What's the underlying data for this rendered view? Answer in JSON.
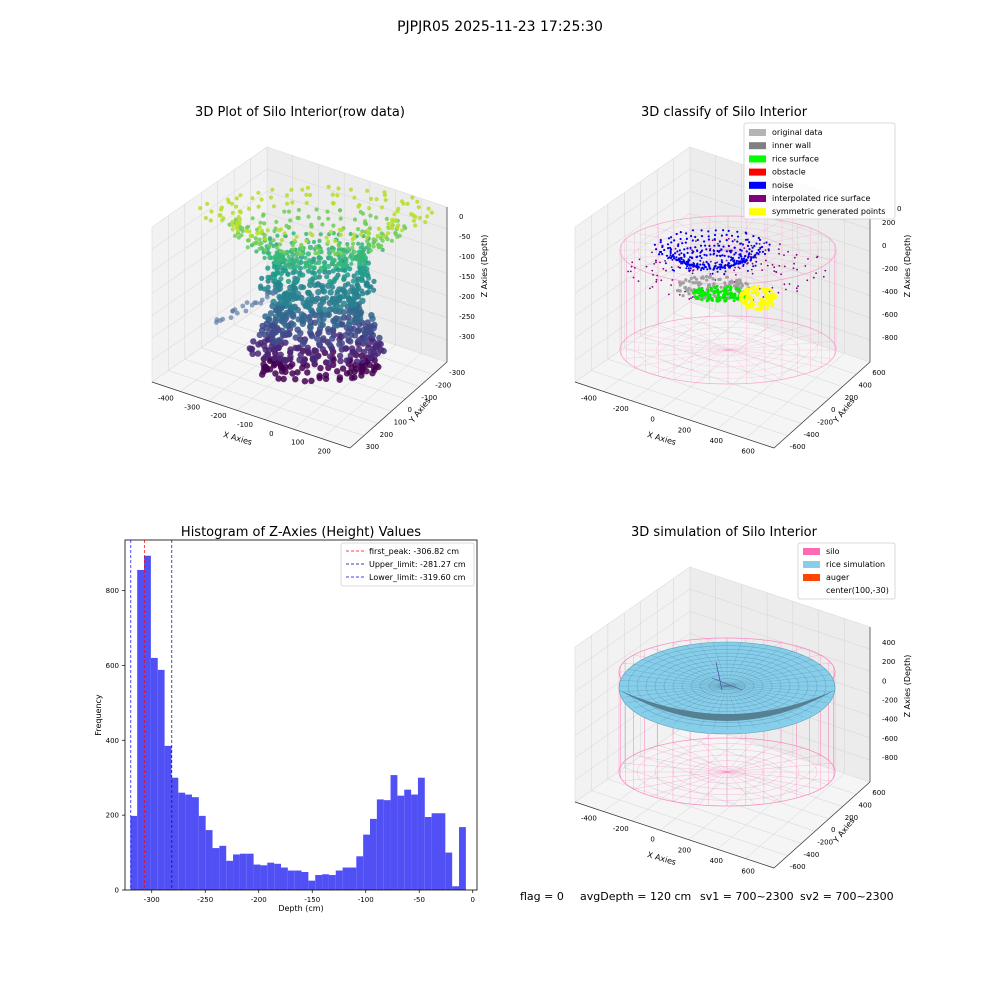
{
  "suptitle": "PJPJR05 2025-11-23 17:25:30",
  "status_line": {
    "flag": "flag = 0",
    "avg_depth": "avgDepth = 120 cm",
    "sv1": "sv1 = 700~2300",
    "sv2": "sv2 = 700~2300"
  },
  "panels": {
    "raw": {
      "title": "3D Plot of Silo Interior(row data)",
      "xlabel": "X Axies",
      "ylabel": "Y Axies",
      "zlabel": "Z Axies (Depth)",
      "xticks": [
        "-400",
        "-300",
        "-200",
        "-100",
        "0",
        "100",
        "200"
      ],
      "yticks": [
        "-300",
        "-200",
        "-100",
        "0",
        "100",
        "200",
        "300"
      ],
      "zticks": [
        "0",
        "-50",
        "-100",
        "-150",
        "-200",
        "-250",
        "-300"
      ]
    },
    "classify": {
      "title": "3D classify of Silo Interior",
      "xlabel": "X Axies",
      "ylabel": "Y Axies",
      "zlabel": "Z Axies (Depth)",
      "xticks": [
        "-400",
        "-200",
        "0",
        "200",
        "400",
        "600"
      ],
      "yticks": [
        "-600",
        "-400",
        "-200",
        "0",
        "200",
        "400",
        "600"
      ],
      "zticks": [
        "200",
        "0",
        "-200",
        "-400",
        "-600",
        "-800"
      ],
      "ztop_partial": "0",
      "legend": [
        {
          "label": "original data",
          "color": "#b4b4b4"
        },
        {
          "label": "inner wall",
          "color": "#808080"
        },
        {
          "label": "rice surface",
          "color": "#00ff00"
        },
        {
          "label": "obstacle",
          "color": "#ff0000"
        },
        {
          "label": "noise",
          "color": "#0000ff"
        },
        {
          "label": "interpolated rice surface",
          "color": "#800080"
        },
        {
          "label": "symmetric generated points",
          "color": "#ffff00"
        }
      ]
    },
    "simulation": {
      "title": "3D simulation of Silo Interior",
      "xlabel": "X Axies",
      "ylabel": "Y Axies",
      "zlabel": "Z Axies (Depth)",
      "xticks": [
        "-400",
        "-200",
        "0",
        "200",
        "400",
        "600"
      ],
      "yticks": [
        "-600",
        "-400",
        "-200",
        "0",
        "200",
        "400",
        "600"
      ],
      "zticks": [
        "400",
        "200",
        "0",
        "-200",
        "-400",
        "-600",
        "-800"
      ],
      "legend": [
        {
          "label": "silo",
          "color": "#ff69b4"
        },
        {
          "label": "rice simulation",
          "color": "#87ceeb"
        },
        {
          "label": "auger",
          "color": "#ff4500"
        },
        {
          "label": "center(100,-30)",
          "color": ""
        }
      ]
    }
  },
  "chart_data": {
    "type": "bar",
    "title": "Histogram of Z-Axies (Height) Values",
    "xlabel": "Depth (cm)",
    "ylabel": "Frequency",
    "xlim": [
      -325,
      4
    ],
    "ylim": [
      0,
      935
    ],
    "xticks": [
      -300,
      -250,
      -200,
      -150,
      -100,
      -50,
      0
    ],
    "yticks": [
      0,
      200,
      400,
      600,
      800
    ],
    "bin_start": -320,
    "bin_width": 6.4,
    "bar_color": "#5050f5",
    "values": [
      198,
      855,
      893,
      620,
      588,
      385,
      300,
      260,
      255,
      248,
      198,
      160,
      112,
      118,
      78,
      95,
      97,
      97,
      68,
      66,
      73,
      70,
      60,
      52,
      52,
      48,
      25,
      40,
      42,
      40,
      52,
      60,
      60,
      90,
      148,
      190,
      242,
      240,
      307,
      252,
      268,
      255,
      300,
      195,
      205,
      205,
      100,
      10,
      168
    ],
    "vlines": [
      {
        "label": "first_peak: -306.82 cm",
        "x": -306.82,
        "color": "#ff0000"
      },
      {
        "label": "Upper_limit: -281.27 cm",
        "x": -281.27,
        "color": "#000080"
      },
      {
        "label": "Lower_limit: -319.60 cm",
        "x": -319.6,
        "color": "#0000ff"
      }
    ]
  }
}
